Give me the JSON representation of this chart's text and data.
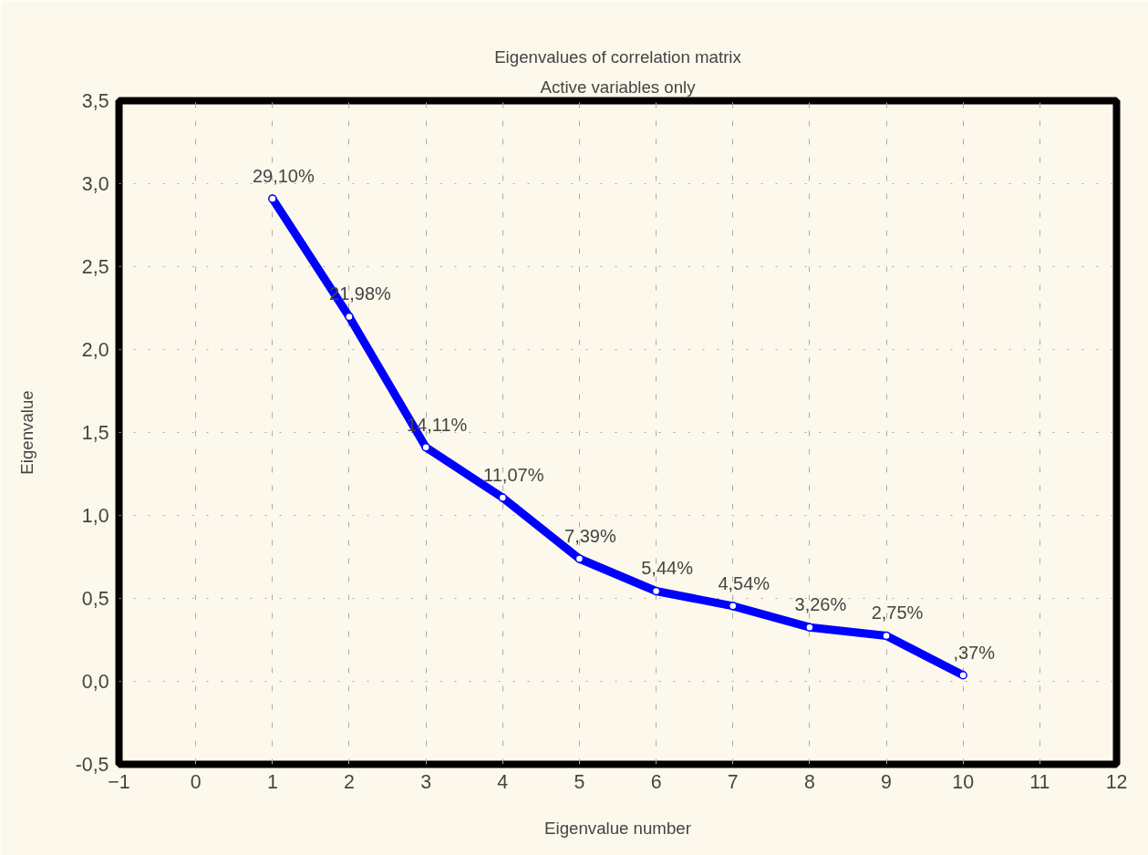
{
  "chart_data": {
    "type": "line",
    "title": "Eigenvalues of correlation matrix",
    "subtitle": "Active variables only",
    "xlabel": "Eigenvalue number",
    "ylabel": "Eigenvalue",
    "x": [
      1,
      2,
      3,
      4,
      5,
      6,
      7,
      8,
      9,
      10
    ],
    "series": [
      {
        "color": "#0000ff",
        "values": [
          2.91,
          2.198,
          1.411,
          1.107,
          0.739,
          0.544,
          0.454,
          0.326,
          0.275,
          0.037
        ]
      }
    ],
    "annotations": [
      {
        "text": "29,10%",
        "x": 1,
        "y": 2.91
      },
      {
        "text": "21,98%",
        "x": 2,
        "y": 2.198
      },
      {
        "text": "14,11%",
        "x": 3,
        "y": 1.411
      },
      {
        "text": "11,07%",
        "x": 4,
        "y": 1.107
      },
      {
        "text": "7,39%",
        "x": 5,
        "y": 0.739
      },
      {
        "text": "5,44%",
        "x": 6,
        "y": 0.544
      },
      {
        "text": "4,54%",
        "x": 7,
        "y": 0.454
      },
      {
        "text": "3,26%",
        "x": 8,
        "y": 0.326
      },
      {
        "text": "2,75%",
        "x": 9,
        "y": 0.275
      },
      {
        "text": ",37%",
        "x": 10,
        "y": 0.037
      }
    ],
    "xlim": [
      -1,
      12
    ],
    "xticks": [
      -1,
      0,
      1,
      2,
      3,
      4,
      5,
      6,
      7,
      8,
      9,
      10,
      11,
      12
    ],
    "ylim": [
      -0.5,
      3.5
    ],
    "yticks": [
      {
        "value": -0.5,
        "label": "-0,5"
      },
      {
        "value": 0,
        "label": "0,0"
      },
      {
        "value": 0.5,
        "label": "0,5"
      },
      {
        "value": 1,
        "label": "1,0"
      },
      {
        "value": 1.5,
        "label": "1,5"
      },
      {
        "value": 2,
        "label": "2,0"
      },
      {
        "value": 2.5,
        "label": "2,5"
      },
      {
        "value": 3,
        "label": "3,0"
      },
      {
        "value": 3.5,
        "label": "3,5"
      }
    ],
    "grid": true,
    "marker": "circle",
    "line_style": "solid"
  }
}
